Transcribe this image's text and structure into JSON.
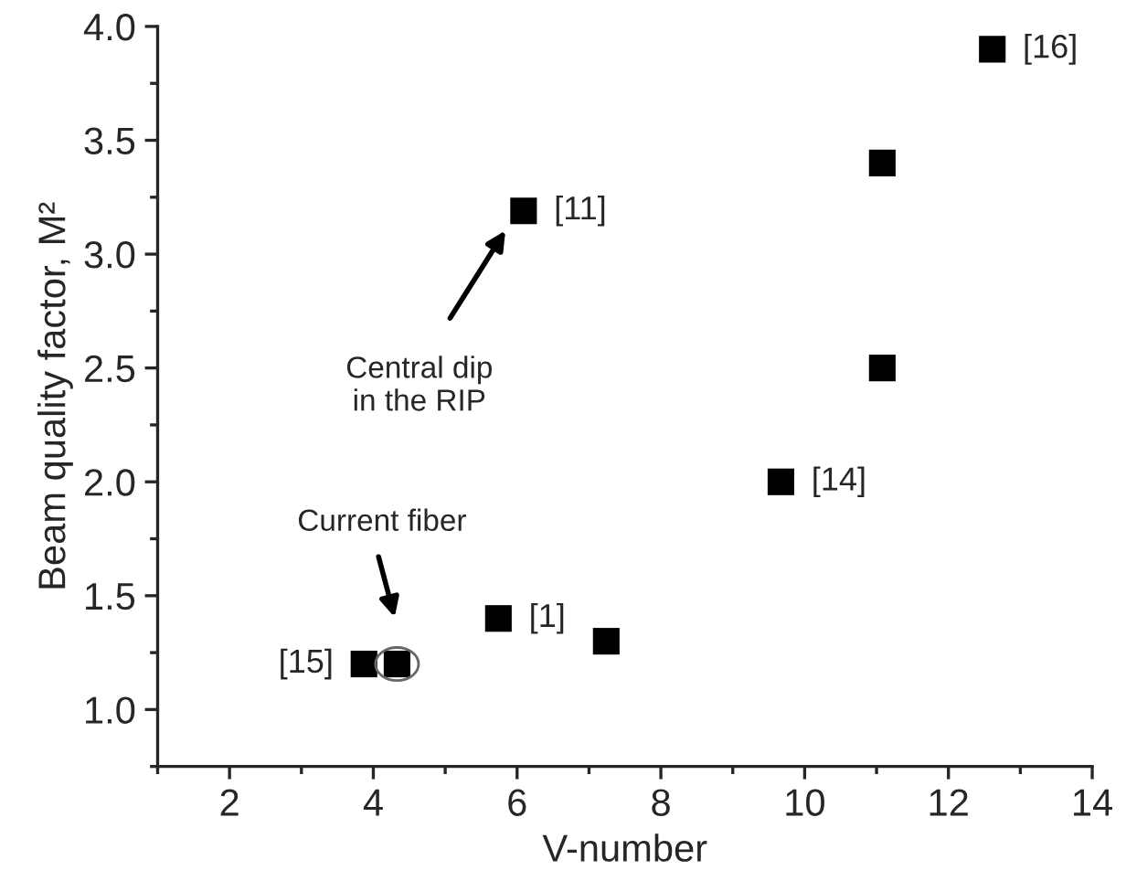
{
  "chart_data": {
    "type": "scatter",
    "xlabel": "V-number",
    "ylabel": "Beam quality factor, M²",
    "x": [
      3.87,
      4.33,
      5.74,
      7.24,
      6.09,
      9.67,
      11.08,
      11.08,
      12.61
    ],
    "values": [
      1.2,
      1.2,
      1.4,
      1.3,
      3.19,
      2.0,
      3.4,
      2.5,
      3.9
    ],
    "color": "#000000",
    "marker": "square",
    "xlim": [
      1,
      14
    ],
    "xticks": [
      2,
      4,
      6,
      8,
      10,
      12,
      14
    ],
    "ylim": [
      0.75,
      4.0
    ],
    "yticks": [
      {
        "value": 1.0,
        "label": "1.0"
      },
      {
        "value": 1.5,
        "label": "1.5"
      },
      {
        "value": 2.0,
        "label": "2.0"
      },
      {
        "value": 2.5,
        "label": "2.5"
      },
      {
        "value": 3.0,
        "label": "3.0"
      },
      {
        "value": 3.5,
        "label": "3.5"
      },
      {
        "value": 4.0,
        "label": "4.0"
      }
    ],
    "grid": false,
    "legend": false,
    "annotations": [
      {
        "text": "[15]",
        "x": 3.87,
        "y": 1.2
      },
      {
        "text": "[1]",
        "x": 5.74,
        "y": 1.4
      },
      {
        "text": "[11]",
        "x": 6.09,
        "y": 3.19
      },
      {
        "text": "[14]",
        "x": 9.67,
        "y": 2.0
      },
      {
        "text": "[16]",
        "x": 12.61,
        "y": 3.9
      },
      "Central dip\nin the RIP",
      "Current fiber"
    ]
  }
}
